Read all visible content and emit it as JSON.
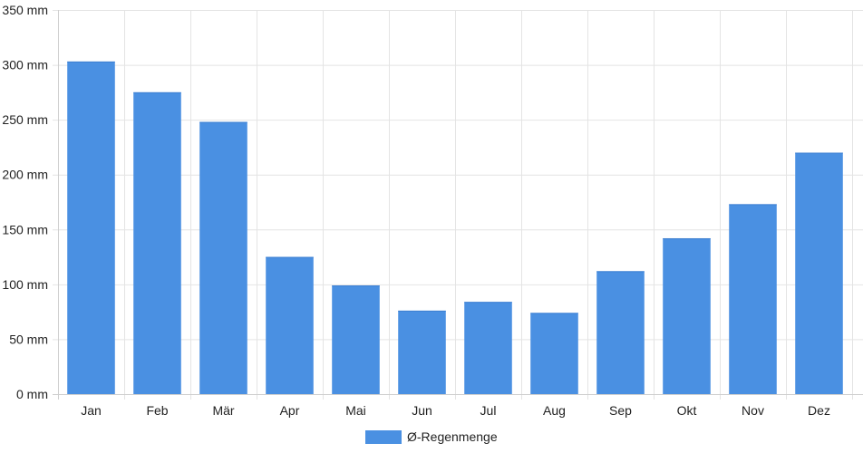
{
  "chart_data": {
    "type": "bar",
    "categories": [
      "Jan",
      "Feb",
      "Mär",
      "Apr",
      "Mai",
      "Jun",
      "Jul",
      "Aug",
      "Sep",
      "Okt",
      "Nov",
      "Dez"
    ],
    "series": [
      {
        "name": "Ø-Regenmenge",
        "values": [
          303,
          275,
          248,
          125,
          99,
          76,
          84,
          74,
          112,
          142,
          173,
          220
        ],
        "color": "#4a90e2"
      }
    ],
    "yticks": [
      "0 mm",
      "50 mm",
      "100 mm",
      "150 mm",
      "200 mm",
      "250 mm",
      "300 mm",
      "350 mm"
    ],
    "ylim": [
      0,
      350
    ],
    "ystep": 50,
    "grid": true,
    "legend": "bottom-center",
    "title": "",
    "xlabel": "",
    "ylabel": ""
  }
}
